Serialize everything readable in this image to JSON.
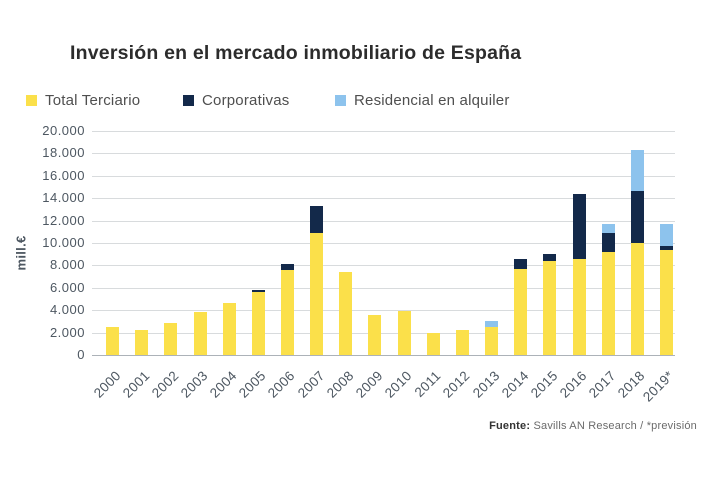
{
  "title": "Inversión en el mercado inmobiliario de España",
  "legend": [
    {
      "label": "Total Terciario",
      "color": "#FBE04A"
    },
    {
      "label": "Corporativas",
      "color": "#13294A"
    },
    {
      "label": "Residencial en alquiler",
      "color": "#8DC3ED"
    }
  ],
  "y_axis": {
    "label": "mill.€",
    "ticks": [
      "20.000",
      "18.000",
      "16.000",
      "14.000",
      "12.000",
      "10.000",
      "8.000",
      "6.000",
      "4.000",
      "2.000",
      "0"
    ]
  },
  "footer": {
    "bold": "Fuente:",
    "text": " Savills AN Research / *previsión"
  },
  "colors": {
    "terciario": "#FBE04A",
    "corporativas": "#13294A",
    "residencial": "#8DC3ED",
    "gridline": "#D8DBDD",
    "zero_line": "#ACB2B8",
    "title_text": "#2C2C2C",
    "axis_text": "#4D5761",
    "legend_text": "#4F4F4F",
    "footer_text": "#6B6B6B",
    "footer_bold_text": "#333333"
  },
  "chart_data": {
    "type": "bar",
    "stacked": true,
    "title": "Inversión en el mercado inmobiliario de España",
    "ylabel": "mill.€",
    "ylim": [
      0,
      20000
    ],
    "ystep": 2000,
    "grid": true,
    "legend_position": "top",
    "categories": [
      "2000",
      "2001",
      "2002",
      "2003",
      "2004",
      "2005",
      "2006",
      "2007",
      "2008",
      "2009",
      "2010",
      "2011",
      "2012",
      "2013",
      "2014",
      "2015",
      "2016",
      "2017",
      "2018",
      "2019*"
    ],
    "series": [
      {
        "name": "Total Terciario",
        "color": "#FBE04A",
        "values": [
          2500,
          2200,
          2900,
          3800,
          4600,
          5600,
          7600,
          10900,
          7400,
          3600,
          3900,
          2000,
          2200,
          2500,
          7700,
          8400,
          8600,
          9200,
          10000,
          9400
        ]
      },
      {
        "name": "Corporativas",
        "color": "#13294A",
        "values": [
          0,
          0,
          0,
          0,
          0,
          200,
          500,
          2400,
          0,
          0,
          0,
          0,
          0,
          0,
          900,
          600,
          5800,
          1700,
          4600,
          300
        ]
      },
      {
        "name": "Residencial en alquiler",
        "color": "#8DC3ED",
        "values": [
          0,
          0,
          0,
          0,
          0,
          0,
          0,
          0,
          0,
          0,
          0,
          0,
          0,
          500,
          0,
          0,
          0,
          800,
          3700,
          2000
        ]
      }
    ]
  }
}
